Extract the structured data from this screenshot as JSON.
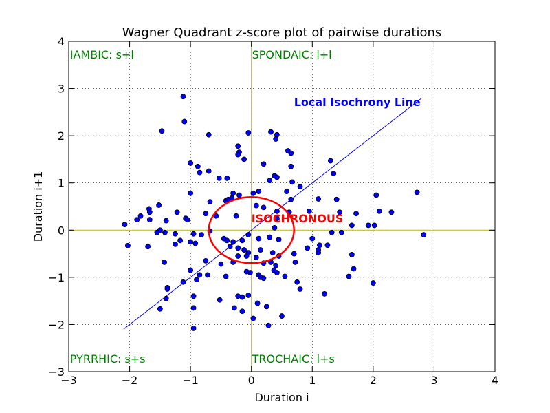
{
  "chart_data": {
    "type": "scatter",
    "title": "Wagner Quadrant z-score plot of pairwise durations",
    "xlabel": "Duration i",
    "ylabel": "Duration i+1",
    "xlim": [
      -3,
      4
    ],
    "ylim": [
      -3,
      4
    ],
    "xticks": [
      -3,
      -2,
      -1,
      0,
      1,
      2,
      3,
      4
    ],
    "yticks": [
      -3,
      -2,
      -1,
      0,
      1,
      2,
      3,
      4
    ],
    "xtick_labels": [
      "−3",
      "−2",
      "−1",
      "0",
      "1",
      "2",
      "3",
      "4"
    ],
    "ytick_labels": [
      "−3",
      "−2",
      "−1",
      "0",
      "1",
      "2",
      "3",
      "4"
    ],
    "grid": true,
    "colors": {
      "points": "#0000ff",
      "point_edge": "#000000",
      "isochrony_line": "#0000ff",
      "ellipse": "#ff0000",
      "axes_lines": "#bfbf00",
      "quadrant_labels": "#008000"
    },
    "quadrant_labels": {
      "iambic": "IAMBIC: s+l",
      "spondaic": "SPONDAIC: l+l",
      "pyrrhic": "PYRRHIC: s+s",
      "trochaic": "TROCHAIC: l+s"
    },
    "annotations": {
      "isochrony_line_label": "Local Isochrony Line",
      "isochronous_label": "ISOCHRONOUS"
    },
    "isochrony_line": {
      "x": [
        -2.1,
        2.8
      ],
      "y": [
        -2.1,
        2.8
      ]
    },
    "isochronous_ellipse": {
      "cx": 0,
      "cy": 0,
      "rx": 0.7,
      "ry": 0.7
    },
    "points": [
      [
        -1.12,
        2.83
      ],
      [
        -1.1,
        2.3
      ],
      [
        -1.47,
        2.1
      ],
      [
        -0.7,
        2.02
      ],
      [
        -0.05,
        2.06
      ],
      [
        0.32,
        2.08
      ],
      [
        0.42,
        2.02
      ],
      [
        0.4,
        1.93
      ],
      [
        0.6,
        1.68
      ],
      [
        0.65,
        1.63
      ],
      [
        -0.22,
        1.78
      ],
      [
        -0.2,
        1.65
      ],
      [
        -0.22,
        1.6
      ],
      [
        -0.12,
        1.5
      ],
      [
        1.3,
        1.47
      ],
      [
        -1.0,
        1.42
      ],
      [
        -0.88,
        1.35
      ],
      [
        -0.85,
        1.22
      ],
      [
        -0.7,
        1.25
      ],
      [
        0.2,
        1.4
      ],
      [
        0.65,
        1.35
      ],
      [
        -0.53,
        1.1
      ],
      [
        -0.4,
        1.1
      ],
      [
        0.38,
        1.15
      ],
      [
        0.42,
        1.12
      ],
      [
        1.35,
        1.2
      ],
      [
        0.3,
        1.05
      ],
      [
        0.67,
        1.02
      ],
      [
        0.8,
        0.92
      ],
      [
        -1.0,
        0.78
      ],
      [
        -0.3,
        0.78
      ],
      [
        -0.2,
        0.74
      ],
      [
        0.03,
        0.78
      ],
      [
        0.12,
        0.82
      ],
      [
        0.58,
        0.82
      ],
      [
        2.72,
        0.8
      ],
      [
        2.05,
        0.74
      ],
      [
        -0.42,
        0.62
      ],
      [
        -0.38,
        0.65
      ],
      [
        -0.32,
        0.68
      ],
      [
        0.08,
        0.52
      ],
      [
        0.2,
        0.48
      ],
      [
        0.65,
        0.65
      ],
      [
        1.1,
        0.66
      ],
      [
        1.4,
        0.65
      ],
      [
        -1.52,
        0.53
      ],
      [
        -1.68,
        0.45
      ],
      [
        -0.68,
        0.6
      ],
      [
        -1.67,
        0.38
      ],
      [
        -1.82,
        0.3
      ],
      [
        -1.88,
        0.22
      ],
      [
        -1.67,
        0.22
      ],
      [
        -1.4,
        0.2
      ],
      [
        -1.08,
        0.25
      ],
      [
        -1.05,
        0.22
      ],
      [
        -1.22,
        0.38
      ],
      [
        -0.75,
        0.35
      ],
      [
        -0.58,
        0.3
      ],
      [
        -0.25,
        0.3
      ],
      [
        0.42,
        0.25
      ],
      [
        0.62,
        0.38
      ],
      [
        0.42,
        0.4
      ],
      [
        0.95,
        0.4
      ],
      [
        1.45,
        0.38
      ],
      [
        1.72,
        0.35
      ],
      [
        2.1,
        0.4
      ],
      [
        2.3,
        0.38
      ],
      [
        -2.08,
        0.12
      ],
      [
        -1.5,
        0.0
      ],
      [
        -1.55,
        -0.05
      ],
      [
        -1.42,
        -0.05
      ],
      [
        -1.25,
        -0.08
      ],
      [
        -1.17,
        -0.22
      ],
      [
        -0.95,
        -0.08
      ],
      [
        -0.82,
        -0.1
      ],
      [
        -0.68,
        -0.02
      ],
      [
        -0.45,
        -0.18
      ],
      [
        -0.4,
        -0.22
      ],
      [
        -0.3,
        -0.25
      ],
      [
        -0.15,
        -0.22
      ],
      [
        -0.05,
        -0.1
      ],
      [
        0.12,
        -0.18
      ],
      [
        0.3,
        -0.15
      ],
      [
        0.38,
        0.05
      ],
      [
        0.45,
        -0.2
      ],
      [
        1.0,
        -0.18
      ],
      [
        1.32,
        -0.05
      ],
      [
        1.48,
        -0.05
      ],
      [
        1.65,
        0.1
      ],
      [
        1.92,
        0.1
      ],
      [
        2.02,
        0.1
      ],
      [
        2.83,
        -0.1
      ],
      [
        -2.03,
        -0.33
      ],
      [
        -1.7,
        -0.35
      ],
      [
        -1.25,
        -0.3
      ],
      [
        -1.0,
        -0.25
      ],
      [
        -0.92,
        -0.28
      ],
      [
        -0.35,
        -0.35
      ],
      [
        -0.22,
        -0.38
      ],
      [
        -0.12,
        -0.42
      ],
      [
        -0.05,
        -0.48
      ],
      [
        0.15,
        -0.42
      ],
      [
        0.35,
        -0.48
      ],
      [
        0.45,
        -0.55
      ],
      [
        0.7,
        -0.5
      ],
      [
        0.92,
        -0.38
      ],
      [
        1.1,
        -0.42
      ],
      [
        1.12,
        -0.32
      ],
      [
        1.25,
        -0.32
      ],
      [
        -1.43,
        -0.68
      ],
      [
        -0.75,
        -0.65
      ],
      [
        -0.5,
        -0.72
      ],
      [
        -0.3,
        -0.68
      ],
      [
        -0.22,
        -0.55
      ],
      [
        -0.08,
        -0.55
      ],
      [
        0.08,
        -0.58
      ],
      [
        0.2,
        -0.7
      ],
      [
        0.32,
        -0.68
      ],
      [
        0.4,
        -0.75
      ],
      [
        0.72,
        -0.68
      ],
      [
        1.1,
        -0.48
      ],
      [
        1.65,
        -0.52
      ],
      [
        1.68,
        -0.82
      ],
      [
        -1.0,
        -0.85
      ],
      [
        -0.85,
        -0.95
      ],
      [
        -0.9,
        -1.05
      ],
      [
        -0.72,
        -0.95
      ],
      [
        -0.42,
        -0.98
      ],
      [
        -0.08,
        -0.88
      ],
      [
        -0.02,
        -0.9
      ],
      [
        0.12,
        -0.95
      ],
      [
        0.15,
        -1.0
      ],
      [
        0.2,
        -1.02
      ],
      [
        0.37,
        -0.85
      ],
      [
        0.42,
        -0.9
      ],
      [
        0.55,
        -0.98
      ],
      [
        0.75,
        -1.1
      ],
      [
        0.8,
        -1.25
      ],
      [
        1.6,
        -0.98
      ],
      [
        2.0,
        -1.12
      ],
      [
        -1.12,
        -1.1
      ],
      [
        -1.38,
        -1.25
      ],
      [
        -1.38,
        -1.22
      ],
      [
        -0.95,
        -1.4
      ],
      [
        -0.52,
        -1.48
      ],
      [
        -0.22,
        -1.4
      ],
      [
        -0.15,
        -1.42
      ],
      [
        -0.05,
        -1.38
      ],
      [
        0.1,
        -1.55
      ],
      [
        1.2,
        -1.35
      ],
      [
        -1.4,
        -1.45
      ],
      [
        -1.5,
        -1.67
      ],
      [
        -0.95,
        -1.65
      ],
      [
        -0.28,
        -1.65
      ],
      [
        -0.15,
        -1.72
      ],
      [
        0.03,
        -1.87
      ],
      [
        0.25,
        -1.62
      ],
      [
        0.5,
        -1.82
      ],
      [
        0.28,
        -2.02
      ],
      [
        -0.95,
        -2.08
      ]
    ]
  }
}
